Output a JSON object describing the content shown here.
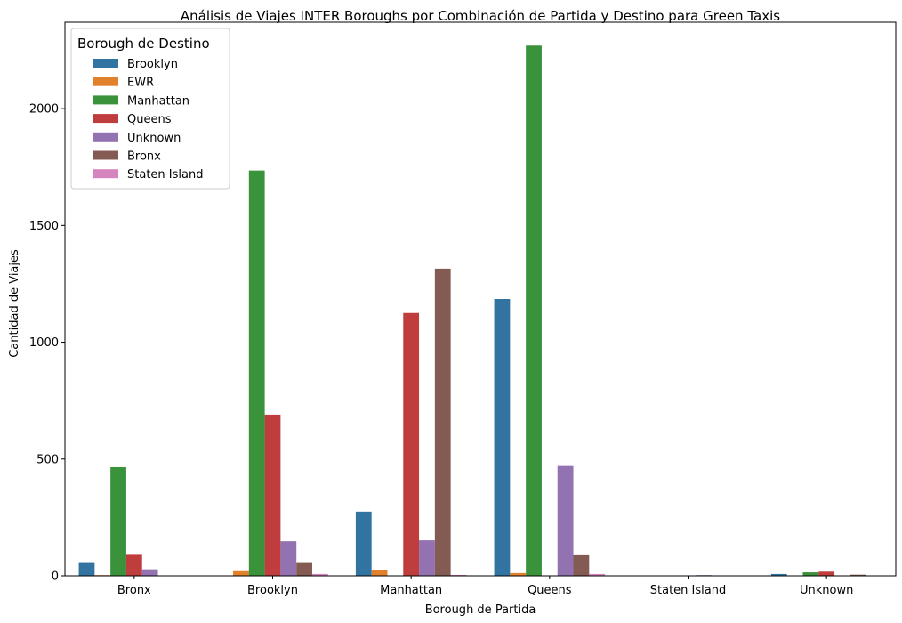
{
  "chart_data": {
    "type": "bar",
    "title": "Análisis de Viajes INTER Boroughs por Combinación de Partida y Destino para Green Taxis",
    "xlabel": "Borough de Partida",
    "ylabel": "Cantidad de Viajes",
    "ylim": [
      0,
      2370
    ],
    "yticks": [
      0,
      500,
      1000,
      1500,
      2000
    ],
    "grid": false,
    "legend": {
      "title": "Borough de Destino",
      "placement": "top-left"
    },
    "categories": [
      "Bronx",
      "Brooklyn",
      "Manhattan",
      "Queens",
      "Staten Island",
      "Unknown"
    ],
    "series": [
      {
        "name": "Brooklyn",
        "color": "#3274a1",
        "values": [
          55,
          0,
          275,
          1185,
          0,
          8
        ]
      },
      {
        "name": "EWR",
        "color": "#e1812c",
        "values": [
          3,
          20,
          25,
          12,
          0,
          0
        ]
      },
      {
        "name": "Manhattan",
        "color": "#3a923a",
        "values": [
          465,
          1735,
          0,
          2270,
          0,
          15
        ]
      },
      {
        "name": "Queens",
        "color": "#c03d3e",
        "values": [
          90,
          690,
          1125,
          0,
          0,
          18
        ]
      },
      {
        "name": "Unknown",
        "color": "#9372b2",
        "values": [
          28,
          148,
          152,
          470,
          3,
          0
        ]
      },
      {
        "name": "Bronx",
        "color": "#845b53",
        "values": [
          0,
          55,
          1315,
          88,
          0,
          5
        ]
      },
      {
        "name": "Staten Island",
        "color": "#d684bd",
        "values": [
          0,
          8,
          4,
          8,
          0,
          0
        ]
      }
    ]
  }
}
